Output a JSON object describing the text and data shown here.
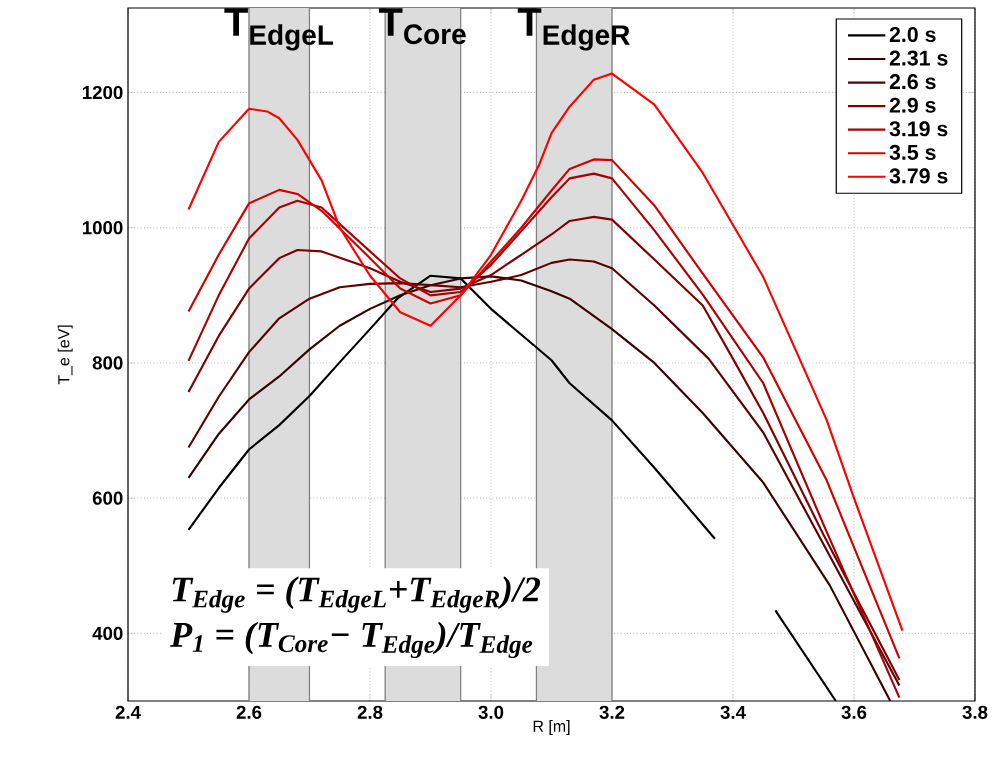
{
  "chart_data": {
    "type": "line",
    "xlabel": "R [m]",
    "ylabel": "T_e [eV]",
    "xlim": [
      2.4,
      3.8
    ],
    "ylim": [
      300,
      1325
    ],
    "xticks": [
      2.4,
      2.6,
      2.8,
      {
        "value": 3.0,
        "label": "3.0"
      },
      3.2,
      3.4,
      3.6,
      3.8
    ],
    "yticks": [
      400,
      600,
      800,
      1000,
      1200
    ],
    "grid": true,
    "legend": "top right",
    "bands": [
      {
        "axis": "x",
        "from": 2.6,
        "to": 2.7,
        "label": "T$_{EdgeL}$",
        "color": "#dcdcdc"
      },
      {
        "axis": "x",
        "from": 2.825,
        "to": 2.95,
        "label": "T$_{Core}$",
        "color": "#dcdcdc"
      },
      {
        "axis": "x",
        "from": 3.075,
        "to": 3.2,
        "label": "T$_{EdgeR}$",
        "color": "#dcdcdc"
      }
    ],
    "annotations": [
      "T$_{Edge}$ = (T$_{EdgeL}$+T$_{EdgeR}$)/2",
      "P$_{1}$ = (T$_{Core}$− T$_{Edge}$)/T$_{Edge}$"
    ],
    "series": [
      {
        "name": "2.0 s",
        "color": "#000000",
        "x": [
          2.5,
          2.55,
          2.6,
          2.65,
          2.7,
          2.755,
          2.8,
          2.845,
          2.9,
          2.95,
          3.0,
          3.1,
          3.13,
          3.2,
          3.27,
          3.37,
          3.42,
          3.47,
          3.57
        ],
        "values": [
          553,
          615,
          672,
          708,
          751,
          806,
          850,
          895,
          929,
          925,
          880,
          804,
          770,
          715,
          645,
          540,
          null,
          434,
          300
        ]
      },
      {
        "name": "2.31 s",
        "color": "#3a0000",
        "x": [
          2.5,
          2.55,
          2.6,
          2.65,
          2.7,
          2.75,
          2.8,
          2.85,
          2.9,
          2.95,
          3.0,
          3.05,
          3.1,
          3.13,
          3.2,
          3.27,
          3.35,
          3.45,
          3.56,
          3.66
        ],
        "values": [
          630,
          695,
          746,
          780,
          820,
          855,
          880,
          900,
          915,
          925,
          928,
          922,
          906,
          895,
          850,
          800,
          726,
          623,
          471,
          300
        ]
      },
      {
        "name": "2.6 s",
        "color": "#5c0000",
        "x": [
          2.5,
          2.55,
          2.6,
          2.65,
          2.7,
          2.75,
          2.8,
          2.85,
          2.9,
          2.95,
          3.0,
          3.05,
          3.1,
          3.13,
          3.17,
          3.2,
          3.27,
          3.36,
          3.45,
          3.55,
          3.6,
          3.675
        ],
        "values": [
          675,
          750,
          816,
          866,
          895,
          912,
          917,
          918,
          915,
          912,
          920,
          930,
          948,
          953,
          950,
          940,
          885,
          806,
          697,
          531,
          448,
          323
        ]
      },
      {
        "name": "2.9 s",
        "color": "#7f0000",
        "x": [
          2.5,
          2.55,
          2.6,
          2.65,
          2.68,
          2.72,
          2.8,
          2.85,
          2.9,
          2.95,
          3.0,
          3.05,
          3.1,
          3.13,
          3.17,
          3.2,
          3.27,
          3.35,
          3.4,
          3.45,
          3.55,
          3.675
        ],
        "values": [
          757,
          840,
          910,
          955,
          967,
          965,
          940,
          920,
          905,
          910,
          930,
          960,
          990,
          1010,
          1016,
          1012,
          953,
          885,
          806,
          726,
          545,
          331
        ]
      },
      {
        "name": "3.19 s",
        "color": "#a80000",
        "x": [
          2.5,
          2.55,
          2.6,
          2.65,
          2.68,
          2.72,
          2.8,
          2.85,
          2.9,
          2.95,
          3.0,
          3.05,
          3.1,
          3.13,
          3.17,
          3.2,
          3.27,
          3.35,
          3.45,
          3.55,
          3.675
        ],
        "values": [
          803,
          900,
          984,
          1030,
          1040,
          1030,
          965,
          925,
          900,
          905,
          945,
          995,
          1045,
          1073,
          1080,
          1073,
          996,
          901,
          770,
          560,
          305
        ]
      },
      {
        "name": "3.5 s",
        "color": "#d00000",
        "x": [
          2.5,
          2.55,
          2.6,
          2.65,
          2.68,
          2.72,
          2.8,
          2.85,
          2.9,
          2.95,
          3.0,
          3.05,
          3.1,
          3.13,
          3.17,
          3.2,
          3.27,
          3.35,
          3.45,
          3.555,
          3.675
        ],
        "values": [
          876,
          960,
          1036,
          1056,
          1050,
          1025,
          955,
          910,
          888,
          900,
          950,
          1000,
          1055,
          1087,
          1101,
          1100,
          1033,
          932,
          808,
          626,
          363
        ]
      },
      {
        "name": "3.79 s",
        "color": "#ff0000",
        "x": [
          2.5,
          2.55,
          2.6,
          2.63,
          2.65,
          2.68,
          2.72,
          2.75,
          2.8,
          2.85,
          2.9,
          2.95,
          3.0,
          3.05,
          3.08,
          3.1,
          3.13,
          3.17,
          3.2,
          3.27,
          3.35,
          3.45,
          3.51,
          3.555,
          3.6,
          3.68
        ],
        "values": [
          1027,
          1127,
          1176,
          1172,
          1162,
          1130,
          1070,
          1000,
          929,
          875,
          855,
          900,
          960,
          1040,
          1094,
          1140,
          1179,
          1219,
          1228,
          1182,
          1081,
          927,
          806,
          715,
          600,
          404
        ]
      }
    ]
  }
}
